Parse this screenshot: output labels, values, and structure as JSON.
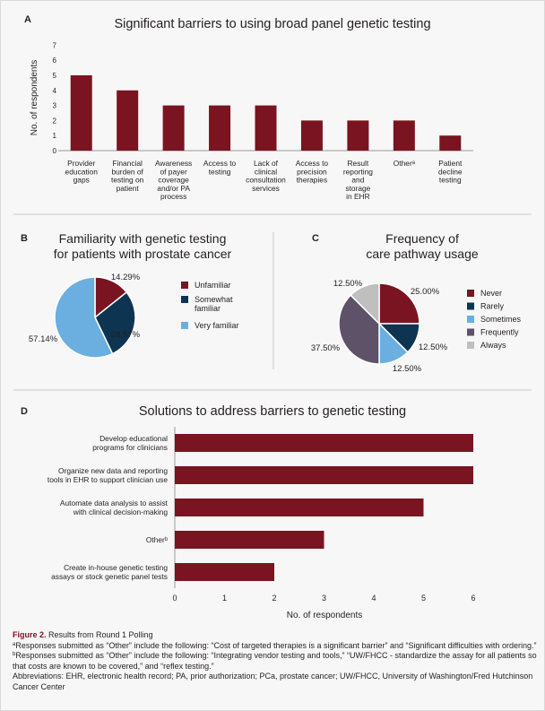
{
  "colors": {
    "maroon": "#7a1420",
    "navy": "#0d3450",
    "light_blue": "#6aafe0",
    "purple_gray": "#5e5269",
    "light_gray": "#bfbfbf"
  },
  "chart_data": [
    {
      "panel": "A",
      "type": "bar",
      "title": "Significant barriers to using broad panel genetic testing",
      "xlabel": "",
      "ylabel": "No. of respondents",
      "ylim": [
        0,
        7
      ],
      "yticks": [
        "0",
        "1",
        "2",
        "3",
        "4",
        "5",
        "6",
        "7"
      ],
      "categories": [
        [
          "Provider",
          "education",
          "gaps"
        ],
        [
          "Financial",
          "burden of",
          "testing on",
          "patient"
        ],
        [
          "Awareness",
          "of payer",
          "coverage",
          "and/or PA",
          "process"
        ],
        [
          "Access to",
          "testing"
        ],
        [
          "Lack of",
          "clinical",
          "consultation",
          "services"
        ],
        [
          "Access to",
          "precision",
          "therapies"
        ],
        [
          "Result",
          "reporting",
          "and",
          "storage",
          "in EHR"
        ],
        [
          "Otherᵃ"
        ],
        [
          "Patient",
          "decline",
          "testing"
        ]
      ],
      "values": [
        5,
        4,
        3,
        3,
        3,
        2,
        2,
        2,
        1
      ]
    },
    {
      "panel": "B",
      "type": "pie",
      "title": [
        "Familiarity with genetic testing",
        "for patients with prostate cancer"
      ],
      "slices": [
        {
          "label": "Unfamiliar",
          "value": 14.29,
          "display": "14.29%",
          "color": "#7a1420"
        },
        {
          "label": "Somewhat familiar",
          "legend_lines": [
            "Somewhat",
            "familiar"
          ],
          "value": 28.57,
          "display": "28.57%",
          "color": "#0d3450"
        },
        {
          "label": "Very familiar",
          "value": 57.14,
          "display": "57.14%",
          "color": "#6aafe0"
        }
      ]
    },
    {
      "panel": "C",
      "type": "pie",
      "title": [
        "Frequency of",
        "care pathway usage"
      ],
      "slices": [
        {
          "label": "Never",
          "value": 25.0,
          "display": "25.00%",
          "color": "#7a1420"
        },
        {
          "label": "Rarely",
          "value": 12.5,
          "display": "12.50%",
          "color": "#0d3450"
        },
        {
          "label": "Sometimes",
          "value": 12.5,
          "display": "12.50%",
          "color": "#6aafe0"
        },
        {
          "label": "Frequently",
          "value": 37.5,
          "display": "37.50%",
          "color": "#5e5269"
        },
        {
          "label": "Always",
          "value": 12.5,
          "display": "12.50%",
          "color": "#bfbfbf"
        }
      ]
    },
    {
      "panel": "D",
      "type": "bar",
      "orientation": "horizontal",
      "title": "Solutions to address barriers to genetic testing",
      "xlabel": "No. of respondents",
      "ylabel": "",
      "xlim": [
        0,
        6
      ],
      "xticks": [
        "0",
        "1",
        "2",
        "3",
        "4",
        "5",
        "6"
      ],
      "categories": [
        [
          "Develop educational",
          "programs for clinicians"
        ],
        [
          "Organize new data and reporting",
          "tools in EHR to support clinician use"
        ],
        [
          "Automate data analysis to assist",
          "with clinical decision-making"
        ],
        [
          "Otherᵇ"
        ],
        [
          "Create in-house genetic testing",
          "assays or stock genetic panel tests"
        ]
      ],
      "values": [
        6,
        6,
        5,
        3,
        2
      ]
    }
  ],
  "caption": {
    "figure_label": "Figure 2.",
    "figure_text": " Results from Round 1 Polling",
    "note_a_mark": "a",
    "note_a": "Responses submitted as “Other” include the following: “Cost of targeted therapies is a significant barrier” and “Significant difficulties with ordering.”",
    "note_b_mark": "b",
    "note_b": "Responses submitted as “Other” include the following: “Integrating vendor testing and tools,” “UW/FHCC - standardize the assay for all patients so that costs are known to be covered,” and “reflex testing.”",
    "abbreviations": "Abbreviations: EHR, electronic health record; PA, prior authorization; PCa, prostate cancer; UW/FHCC, University of Washington/Fred Hutchinson Cancer Center"
  }
}
